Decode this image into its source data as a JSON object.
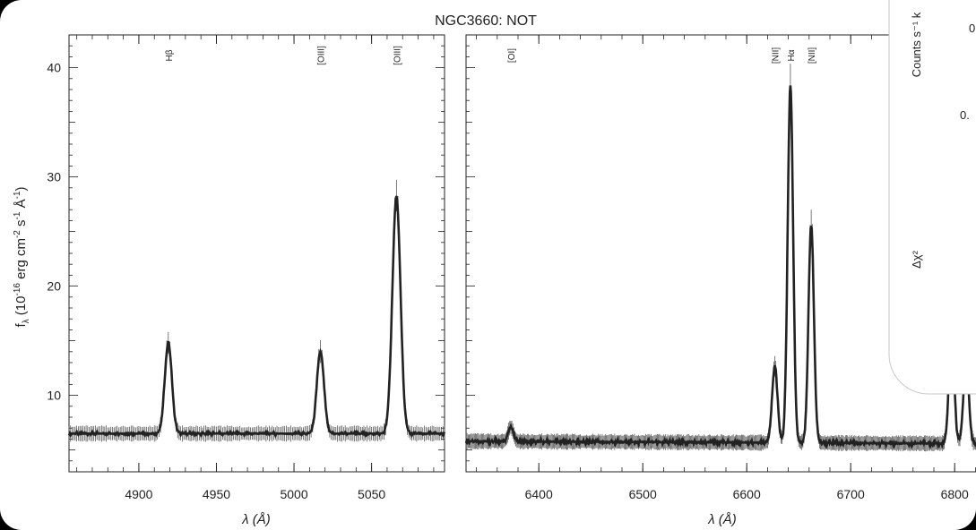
{
  "chart_data": [
    {
      "type": "line",
      "panel": "left",
      "title": "NGC3660: NOT",
      "xlabel": "λ (Å)",
      "ylabel": "f_λ (10^-16 erg cm^-2 s^-1 Å^-1)",
      "ylabel_parts": {
        "f": "f",
        "sub": "λ",
        "open": " (10",
        "e1": "-16",
        "erg": " erg cm",
        "e2": "-2",
        "s": " s",
        "e3": "-1",
        "A": " Å",
        "e4": "-1",
        "close": ")"
      },
      "xlim": [
        4855,
        5097
      ],
      "ylim": [
        3,
        43
      ],
      "xticks": [
        4900,
        4950,
        5000,
        5050
      ],
      "yticks": [
        10,
        20,
        30,
        40
      ],
      "baseline": 6.5,
      "lines": [
        {
          "label": "Hβ",
          "x": 4919,
          "amp": 8.3,
          "sigma": 2.3
        },
        {
          "label": "[OIII]",
          "x": 5017,
          "amp": 7.5,
          "sigma": 2.3
        },
        {
          "label": "[OIII]",
          "x": 5066,
          "amp": 21.8,
          "sigma": 2.6
        }
      ]
    },
    {
      "type": "line",
      "panel": "right",
      "xlabel": "λ (Å)",
      "xlim": [
        6330,
        6830
      ],
      "ylim": [
        3,
        43
      ],
      "xticks": [
        6400,
        6500,
        6600,
        6700,
        6800
      ],
      "baseline": 5.8,
      "lines": [
        {
          "label": "[OI]",
          "x": 6373,
          "amp": 1.3,
          "sigma": 2.5
        },
        {
          "label": "[NII]",
          "x": 6627,
          "amp": 7.0,
          "sigma": 2.6
        },
        {
          "label": "Hα",
          "x": 6642,
          "amp": 32.7,
          "sigma": 2.6
        },
        {
          "label": "[NII]",
          "x": 6662,
          "amp": 20.0,
          "sigma": 2.6
        },
        {
          "label": "",
          "x": 6797,
          "amp": 10.5,
          "sigma": 2.5
        },
        {
          "label": "",
          "x": 6811,
          "amp": 8.0,
          "sigma": 2.5
        }
      ]
    }
  ],
  "overlay": {
    "ylabel_top": "Counts s⁻¹ k",
    "ylabel_bottom": "Δχ²",
    "tick_top": "0",
    "tick_mid": "0."
  },
  "colors": {
    "background": "#000000",
    "plot_bg": "#ffffff",
    "ink": "#222222",
    "overlay_bg": "#ffffff"
  }
}
